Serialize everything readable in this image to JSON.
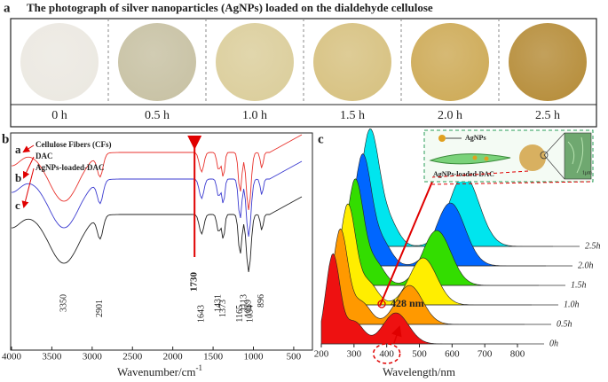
{
  "panel_a": {
    "letter": "a",
    "title": "The photograph of silver nanoparticles (AgNPs) loaded on the dialdehyde cellulose",
    "times": [
      "0 h",
      "0.5 h",
      "1.0 h",
      "1.5 h",
      "2.0 h",
      "2.5 h"
    ],
    "colors": [
      "#ece9e2",
      "#c9c3a6",
      "#dccf9e",
      "#d8c384",
      "#cfad5c",
      "#b8903f"
    ]
  },
  "panel_b": {
    "letter": "b",
    "x_label": "Wavenumber/cm",
    "x_label_sup": "-1",
    "xlim": [
      4000,
      400
    ],
    "xticks": [
      4000,
      3500,
      3000,
      2500,
      2000,
      1500,
      1000,
      500
    ],
    "legend": [
      {
        "name": "Cellulose Fibers (CFs)",
        "letter": "a",
        "color": "#e8322c"
      },
      {
        "name": "DAC",
        "letter": "b",
        "color": "#3b3bd0"
      },
      {
        "name": "AgNPs-loaded-DAC",
        "letter": "c",
        "color": "#222222"
      }
    ],
    "peaks": [
      3350,
      2901,
      1643,
      1431,
      1373,
      1165,
      1113,
      1059,
      1034,
      896
    ],
    "marker_peak": 1730,
    "marker_color": "#e00000"
  },
  "panel_c": {
    "letter": "c",
    "x_label": "Wavelength/nm",
    "xlim": [
      200,
      800
    ],
    "xticks": [
      200,
      300,
      400,
      500,
      600,
      700,
      800
    ],
    "times": [
      "0h",
      "0.5h",
      "1.0h",
      "1.5h",
      "2.0h",
      "2.5h"
    ],
    "colors": [
      "#ee1111",
      "#ff9900",
      "#ffee00",
      "#33dd00",
      "#0066ff",
      "#00e5ee"
    ],
    "annotation": "428 nm",
    "inset": {
      "particle_label": "AgNPs",
      "fiber_label": "AgNPs-loaded-DAC",
      "scale_label": "1μm"
    }
  }
}
